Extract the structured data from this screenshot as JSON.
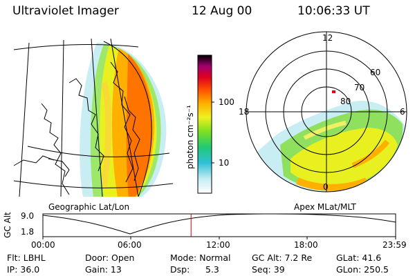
{
  "header": {
    "instrument": "Ultraviolet Imager",
    "date": "12 Aug 00",
    "time": "10:06:33 UT"
  },
  "colorbar": {
    "unit_label": "photon cm⁻²s⁻¹",
    "ticks": [
      "100",
      "10"
    ]
  },
  "map_labels": {
    "geographic": "Geographic Lat/Lon",
    "apex": "Apex MLat/MLT"
  },
  "polar": {
    "mlt_labels": [
      "12",
      "18",
      "6",
      "0"
    ],
    "lat_labels": [
      "60",
      "70",
      "80"
    ]
  },
  "altitude_plot": {
    "ylabel": "GC Alt",
    "yticks": [
      "9.0",
      "1.8"
    ],
    "xticks": [
      "00:00",
      "06:00",
      "12:00",
      "18:00",
      "23:59"
    ],
    "current_time_fraction": 0.42
  },
  "info": {
    "flt": "Flt: LBHL",
    "ip": "IP: 36.0",
    "door": "Door: Open",
    "gain": "Gain: 13",
    "mode": "Mode: Normal",
    "dsp_label": "Dsp:",
    "dsp_value": "5.3",
    "gcalt": "GC Alt: 7.2 Re",
    "seq": "Seq: 39",
    "glat": "GLat:  41.6",
    "glon": "GLon: 250.5"
  }
}
